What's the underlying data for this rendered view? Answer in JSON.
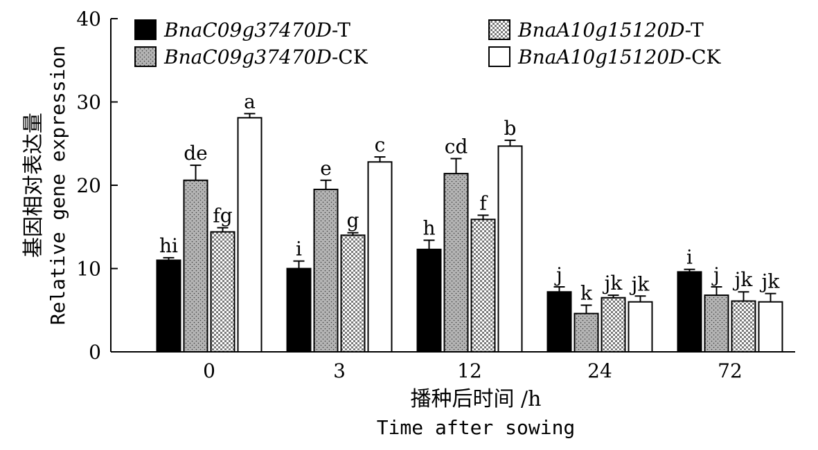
{
  "chart_data": {
    "type": "bar",
    "ylabel_cn": "基因相对表达量",
    "ylabel_en": "Relative gene expression",
    "xlabel_cn": "播种后时间 /h",
    "xlabel_en": "Time after sowing",
    "ylim": [
      0,
      40
    ],
    "yticks": [
      "0",
      "10",
      "20",
      "30",
      "40"
    ],
    "categories": [
      "0",
      "3",
      "12",
      "24",
      "72"
    ],
    "grid": false,
    "legend_position": "top",
    "series": [
      {
        "name": "BnaC09g37470D-T",
        "name_gene": "BnaC09g37470D",
        "name_suffix": "-T",
        "fill": "solid-black",
        "values": [
          11.0,
          10.0,
          12.3,
          7.2,
          9.6
        ],
        "errors": [
          0.3,
          0.9,
          1.1,
          0.6,
          0.3
        ],
        "letters": [
          "hi",
          "i",
          "h",
          "j",
          "i"
        ]
      },
      {
        "name": "BnaC09g37470D-CK",
        "name_gene": "BnaC09g37470D",
        "name_suffix": "-CK",
        "fill": "dotted-gray",
        "values": [
          20.6,
          19.5,
          21.4,
          4.6,
          6.8
        ],
        "errors": [
          1.8,
          1.1,
          1.8,
          1.0,
          1.0
        ],
        "letters": [
          "de",
          "e",
          "cd",
          "k",
          "j"
        ]
      },
      {
        "name": "BnaA10g15120D-T",
        "name_gene": "BnaA10g15120D",
        "name_suffix": "-T",
        "fill": "checker",
        "values": [
          14.4,
          14.0,
          15.9,
          6.5,
          6.1
        ],
        "errors": [
          0.5,
          0.3,
          0.5,
          0.3,
          1.1
        ],
        "letters": [
          "fg",
          "g",
          "f",
          "jk",
          "jk"
        ]
      },
      {
        "name": "BnaA10g15120D-CK",
        "name_gene": "BnaA10g15120D",
        "name_suffix": "-CK",
        "fill": "white",
        "values": [
          28.1,
          22.8,
          24.7,
          6.0,
          6.0
        ],
        "errors": [
          0.5,
          0.6,
          0.7,
          0.7,
          1.0
        ],
        "letters": [
          "a",
          "c",
          "b",
          "jk",
          "jk"
        ]
      }
    ]
  }
}
